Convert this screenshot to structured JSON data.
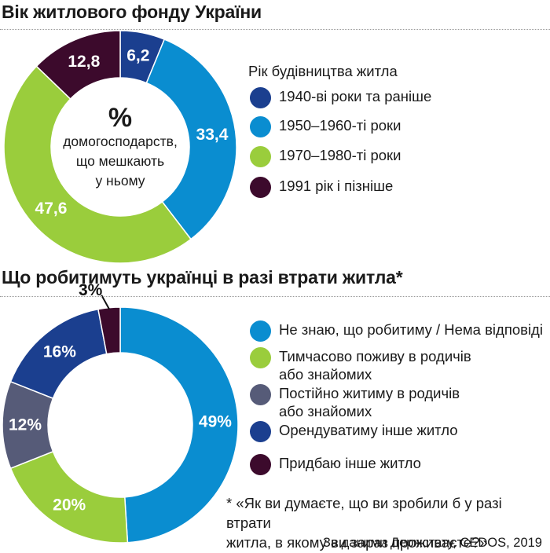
{
  "chart_data": [
    {
      "type": "pie",
      "title": "Вік житлового фонду України",
      "center_label": {
        "symbol": "%",
        "text": [
          "домогосподарств,",
          "що мешкають",
          "у ньому"
        ]
      },
      "legend_title": "Рік будівництва житла",
      "slices": [
        {
          "name": "1940-ві роки та раніше",
          "value": 6.2,
          "label": "6,2",
          "color": "#1b3f8f"
        },
        {
          "name": "1950–1960-ті роки",
          "value": 33.4,
          "label": "33,4",
          "color": "#0a8dd0"
        },
        {
          "name": "1970–1980-ті роки",
          "value": 47.6,
          "label": "47,6",
          "color": "#9acd3c"
        },
        {
          "name": "1991 рік і пізніше",
          "value": 12.8,
          "label": "12,8",
          "color": "#3c0a2c"
        }
      ]
    },
    {
      "type": "pie",
      "title": "Що робитимуть українці в разі втрати житла*",
      "slices": [
        {
          "name": "Не знаю, що робитиму / Нема відповіді",
          "value": 49,
          "label": "49%",
          "color": "#0a8dd0"
        },
        {
          "name": "Тимчасово поживу в родичів або знайомих",
          "value": 20,
          "label": "20%",
          "color": "#9acd3c"
        },
        {
          "name": "Постійно житиму в родичів або знайомих",
          "value": 12,
          "label": "12%",
          "color": "#565b78"
        },
        {
          "name": "Орендуватиму інше житло",
          "value": 16,
          "label": "16%",
          "color": "#1b3f8f"
        },
        {
          "name": "Придбаю інше житло",
          "value": 3,
          "label": "3%",
          "color": "#3c0a2c"
        }
      ],
      "legend": [
        {
          "lines": [
            "Не знаю, що робитиму / Нема відповіді"
          ],
          "color": "#0a8dd0"
        },
        {
          "lines": [
            "Тимчасово поживу в родичів",
            "або знайомих"
          ],
          "color": "#9acd3c"
        },
        {
          "lines": [
            "Постійно житиму в родичів",
            "або знайомих"
          ],
          "color": "#565b78"
        },
        {
          "lines": [
            "Орендуватиму інше житло"
          ],
          "color": "#1b3f8f"
        },
        {
          "lines": [
            "Придбаю інше житло"
          ],
          "color": "#3c0a2c"
        }
      ]
    }
  ],
  "footnote": [
    "* «Як ви думаєте, що ви зробили б у разі втрати",
    "житла, в якому ви зараз проживаєте?»"
  ],
  "source": "За даними Держстату, CEDOS, 2019"
}
